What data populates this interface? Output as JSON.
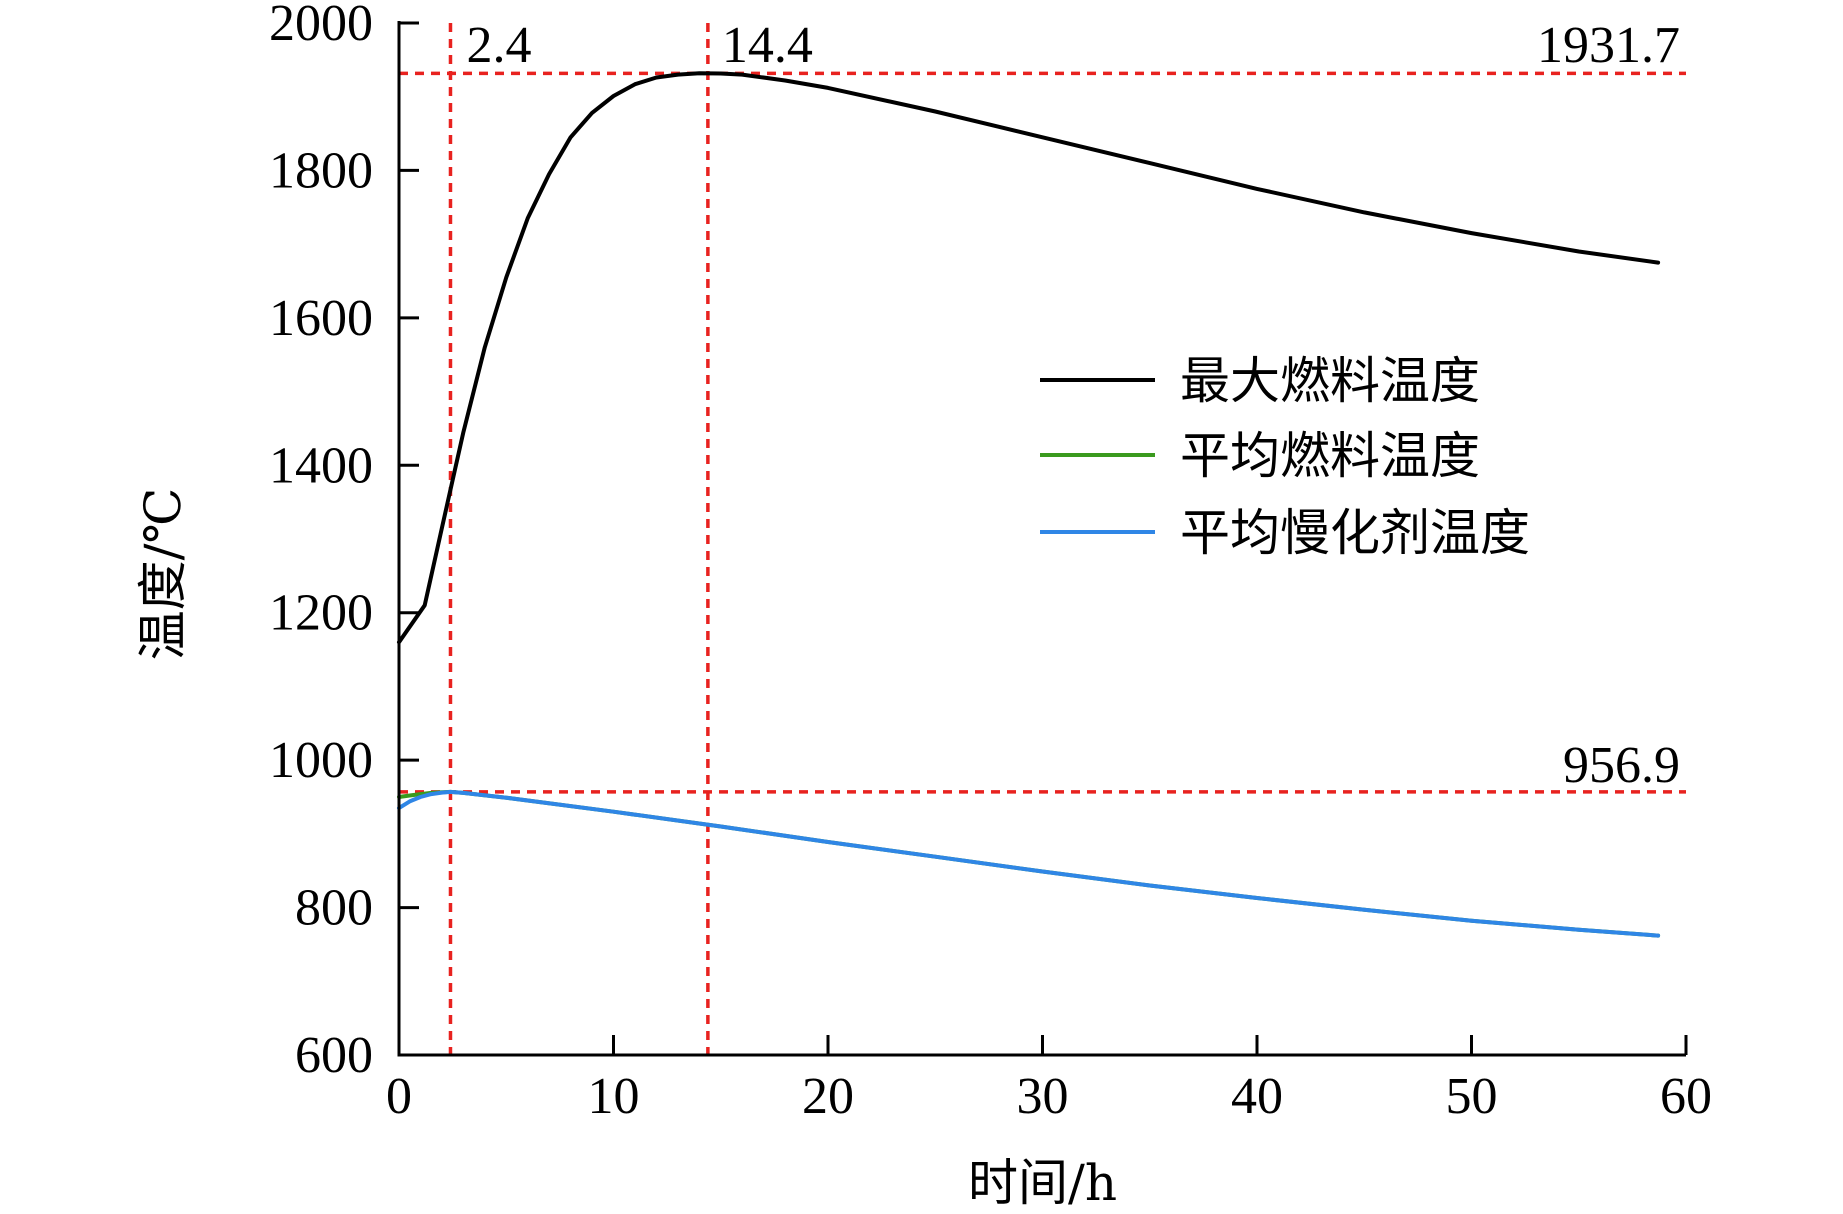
{
  "chart_data": {
    "type": "line",
    "title": "",
    "xlabel": "时间/h",
    "ylabel": "温度/℃",
    "xlim": [
      0,
      60
    ],
    "ylim": [
      600,
      2000
    ],
    "xticks": [
      "0",
      "10",
      "20",
      "30",
      "40",
      "50",
      "60"
    ],
    "yticks": [
      "600",
      "800",
      "1000",
      "1200",
      "1400",
      "1600",
      "1800",
      "2000"
    ],
    "grid": false,
    "legend_position": "right",
    "series": [
      {
        "name": "最大燃料温度",
        "color": "#000000",
        "x": [
          0,
          1.2,
          2,
          3,
          4,
          5,
          6,
          7,
          8,
          9,
          10,
          11,
          12,
          13,
          14,
          15,
          16,
          18,
          20,
          25,
          30,
          35,
          40,
          45,
          50,
          55,
          58.7
        ],
        "y": [
          1160,
          1210,
          1315,
          1445,
          1560,
          1655,
          1735,
          1795,
          1845,
          1878,
          1901,
          1917,
          1926,
          1930,
          1931.7,
          1931.5,
          1930,
          1922,
          1912,
          1880,
          1845,
          1810,
          1775,
          1743,
          1715,
          1690,
          1675
        ]
      },
      {
        "name": "平均燃料温度",
        "color": "#3a9a1e",
        "x": [
          0,
          0.5,
          1,
          1.5,
          2,
          2.4,
          3,
          5,
          10,
          15,
          20,
          25,
          30,
          35,
          40,
          45,
          50,
          55,
          58.7
        ],
        "y": [
          950,
          952,
          954,
          955.5,
          956.5,
          956.9,
          955.5,
          949,
          930,
          910,
          889,
          869,
          849,
          830,
          813,
          797,
          782,
          770,
          762
        ]
      },
      {
        "name": "平均慢化剂温度",
        "color": "#2f86e6",
        "x": [
          0,
          0.5,
          1,
          1.5,
          2,
          2.4,
          3,
          5,
          10,
          15,
          20,
          25,
          30,
          35,
          40,
          45,
          50,
          55,
          58.7
        ],
        "y": [
          935,
          944,
          950,
          954,
          956,
          956.9,
          955.5,
          949,
          930,
          910,
          889,
          869,
          849,
          830,
          813,
          797,
          782,
          770,
          762
        ]
      }
    ],
    "reference_lines": {
      "color": "#e8221f",
      "vertical": [
        2.4,
        14.4
      ],
      "horizontal": [
        1931.7,
        956.9
      ]
    },
    "annotations": {
      "x_peak_early": "2.4",
      "x_peak_max": "14.4",
      "y_max": "1931.7",
      "y_mod": "956.9"
    }
  }
}
